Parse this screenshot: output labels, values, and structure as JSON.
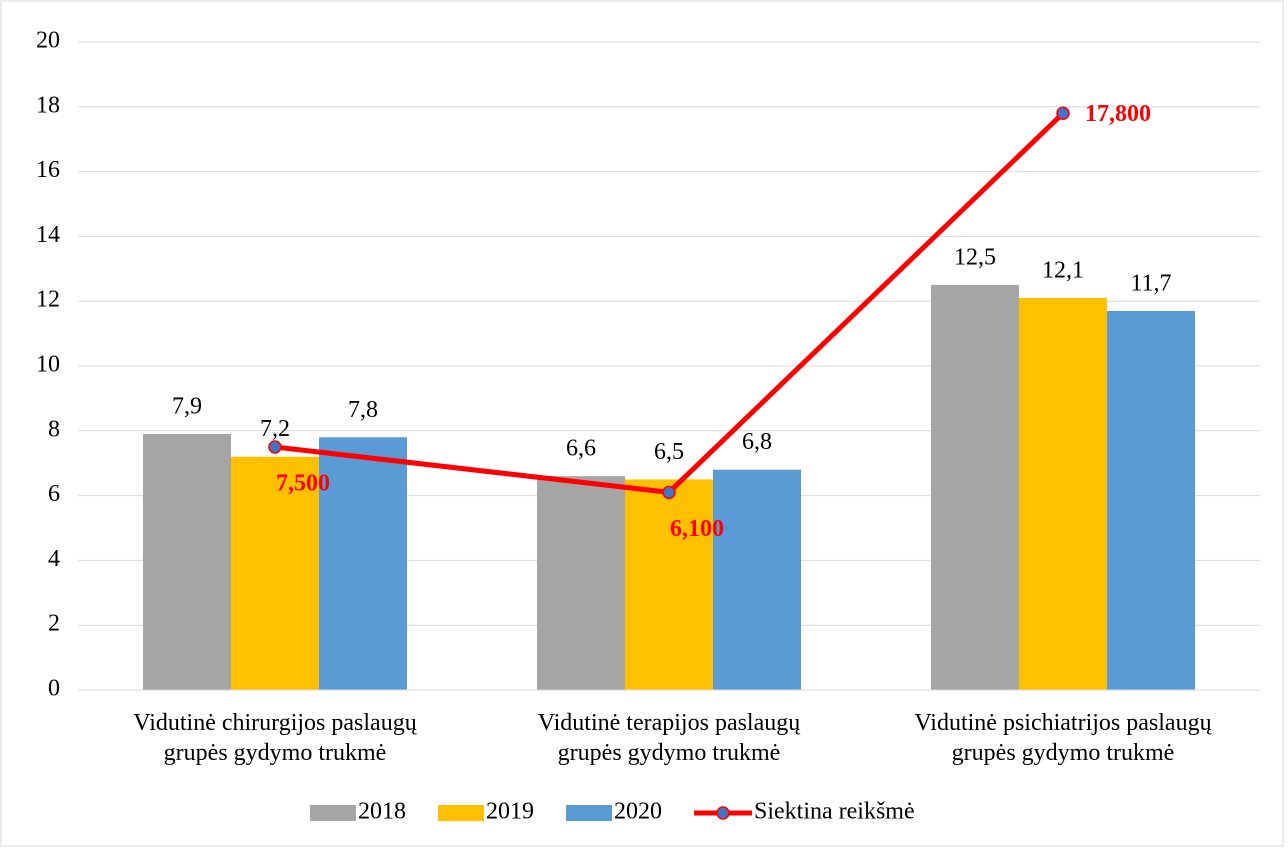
{
  "chart_data": {
    "type": "bar",
    "categories": [
      "Vidutinė chirurgijos paslaugų grupės gydymo trukmė",
      "Vidutinė terapijos paslaugų grupės gydymo trukmė",
      "Vidutinė psichiatrijos paslaugų grupės gydymo trukmė"
    ],
    "series": [
      {
        "name": "2018",
        "color": "#a5a5a5",
        "values": [
          7.9,
          6.6,
          12.5
        ],
        "value_labels": [
          "7,9",
          "6,6",
          "12,5"
        ]
      },
      {
        "name": "2019",
        "color": "#ffc000",
        "values": [
          7.2,
          6.5,
          12.1
        ],
        "value_labels": [
          "7,2",
          "6,5",
          "12,1"
        ]
      },
      {
        "name": "2020",
        "color": "#5b9bd5",
        "values": [
          7.8,
          6.8,
          11.7
        ],
        "value_labels": [
          "7,8",
          "6,8",
          "11,7"
        ]
      },
      {
        "name": "Siektina reikšmė",
        "type": "line",
        "color": "#ff0000",
        "marker_color": "#4472c4",
        "values": [
          7.5,
          6.1,
          17.8
        ],
        "value_labels": [
          "7,500",
          "6,100",
          "17,800"
        ]
      }
    ],
    "ylim": [
      0,
      20
    ],
    "yticks": [
      0,
      2,
      4,
      6,
      8,
      10,
      12,
      14,
      16,
      18,
      20
    ],
    "grid": true,
    "legend": "bottom"
  }
}
